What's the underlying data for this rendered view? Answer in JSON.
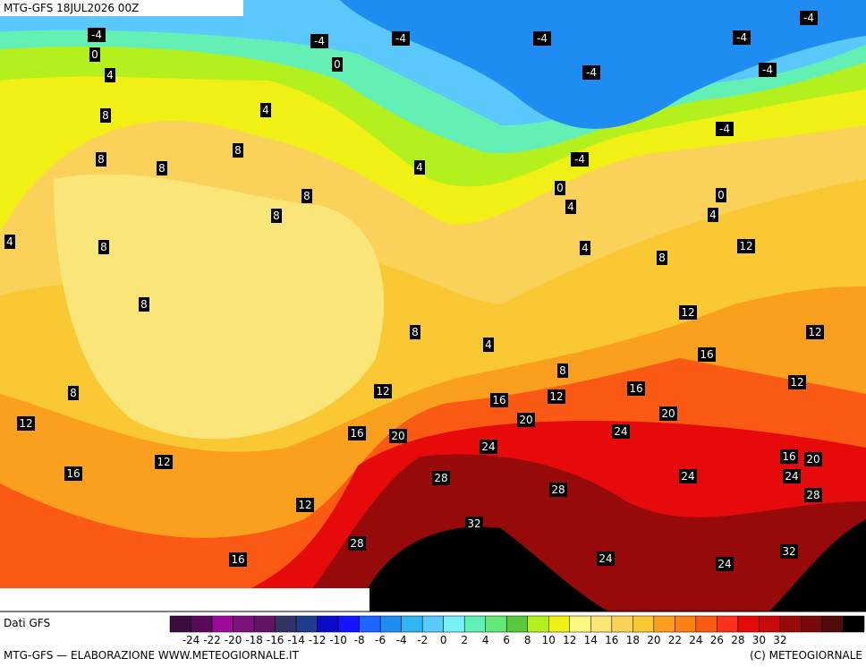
{
  "header": {
    "title": "MTG-GFS 18JUL2026 00Z"
  },
  "map": {
    "labels": [
      -4,
      0,
      4,
      -4,
      -4,
      -4,
      -4,
      -4,
      0,
      -4,
      -4,
      4,
      8,
      8,
      8,
      8,
      -4,
      -4,
      4,
      0,
      8,
      8,
      0,
      4,
      4,
      4,
      8,
      4,
      12,
      8,
      8,
      12,
      8,
      4,
      12,
      16,
      8,
      8,
      12,
      12,
      16,
      12,
      16,
      20,
      20,
      12,
      16,
      20,
      24,
      24,
      16,
      20,
      16,
      12,
      28,
      24,
      24,
      28,
      28,
      12,
      32,
      28,
      32,
      24,
      24,
      16
    ]
  },
  "legend": {
    "source": "Dati GFS",
    "colors": [
      "#3c0a3c",
      "#5a0a5a",
      "#9b0a9b",
      "#7d147d",
      "#641464",
      "#323264",
      "#1e3c8c",
      "#0a0ac8",
      "#1414ff",
      "#1e64ff",
      "#1e8cf0",
      "#32b4f0",
      "#5ac8fa",
      "#78f0fa",
      "#64f0b4",
      "#64e678",
      "#5ac83c",
      "#b4f01e",
      "#f0f014",
      "#fafa82",
      "#fae678",
      "#fad25a",
      "#fac832",
      "#faa01e",
      "#fa8214",
      "#fa5a14",
      "#fa321e",
      "#e60a0a",
      "#c80a0a",
      "#960a0a",
      "#780a0a",
      "#500a0a",
      "#000000"
    ],
    "ticks": [
      -24,
      -22,
      -20,
      -18,
      -16,
      -14,
      -12,
      -10,
      -8,
      -6,
      -4,
      -2,
      0,
      2,
      4,
      6,
      8,
      10,
      12,
      14,
      16,
      18,
      20,
      22,
      24,
      26,
      28,
      30,
      32
    ]
  },
  "footer": {
    "left": "MTG-GFS — ELABORAZIONE WWW.METEOGIORNALE.IT",
    "right": "(C) METEOGIORNALE"
  }
}
